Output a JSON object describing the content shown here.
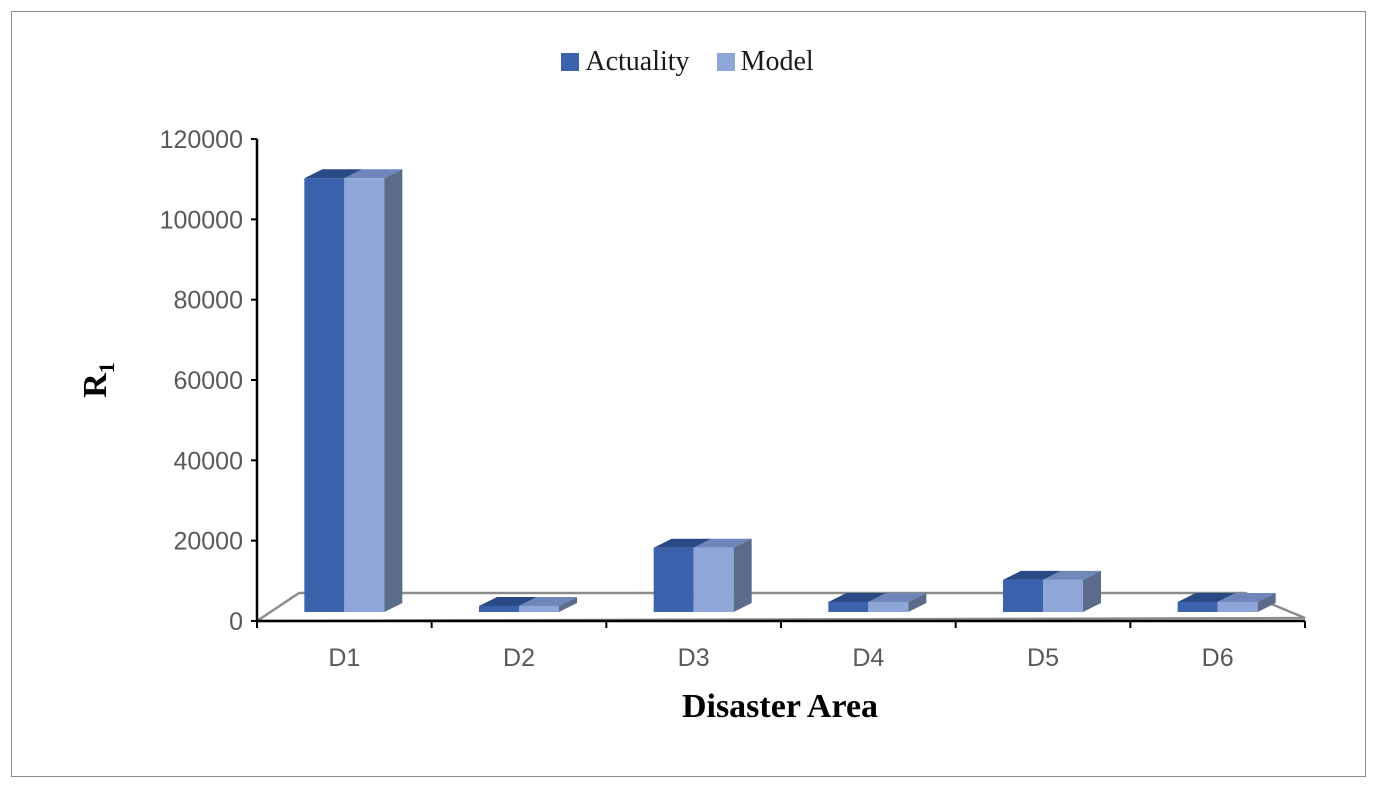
{
  "chart_data": {
    "type": "bar",
    "title": "",
    "xlabel": "Disaster Area",
    "ylabel": "R",
    "ylabel_subscript": "1",
    "categories": [
      "D1",
      "D2",
      "D3",
      "D4",
      "D5",
      "D6"
    ],
    "series": [
      {
        "name": "Actuality",
        "values": [
          108000,
          1500,
          16000,
          2500,
          8000,
          2500
        ]
      },
      {
        "name": "Model",
        "values": [
          108000,
          1500,
          16000,
          2500,
          8000,
          2500
        ]
      }
    ],
    "ylim": [
      0,
      120000
    ],
    "yticks": [
      "0",
      "20000",
      "40000",
      "60000",
      "80000",
      "100000",
      "120000"
    ],
    "grid": false,
    "legend_position": "top",
    "colors": {
      "actuality": "#3a62ad",
      "actuality_top": "#2a4a86",
      "model": "#8fa6d8",
      "model_top": "#6f86bb",
      "side": "#5a6b8c",
      "floor_line": "#8c8c8c",
      "axis": "#000000"
    }
  }
}
